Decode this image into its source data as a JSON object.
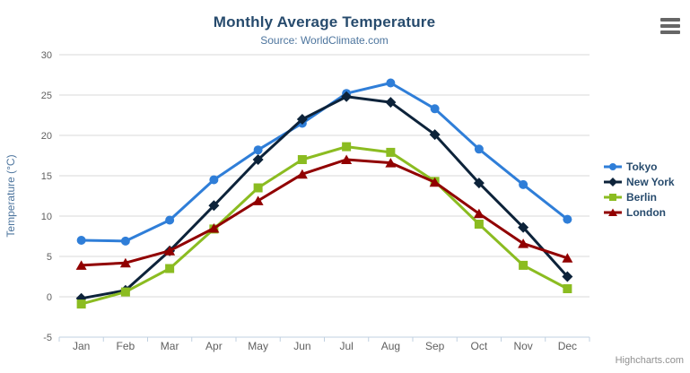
{
  "chart": {
    "title": "Monthly Average Temperature",
    "subtitle": "Source: WorldClimate.com",
    "credits": "Highcharts.com"
  },
  "chart_data": {
    "type": "line",
    "title": "Monthly Average Temperature",
    "subtitle": "Source: WorldClimate.com",
    "categories": [
      "Jan",
      "Feb",
      "Mar",
      "Apr",
      "May",
      "Jun",
      "Jul",
      "Aug",
      "Sep",
      "Oct",
      "Nov",
      "Dec"
    ],
    "xlabel": "",
    "ylabel": "Temperature (°C)",
    "ylim": [
      -5,
      30
    ],
    "ytick_step": 5,
    "grid": true,
    "legend_position": "right",
    "series": [
      {
        "name": "Tokyo",
        "color": "#2f7ed8",
        "marker": "circle",
        "values": [
          7.0,
          6.9,
          9.5,
          14.5,
          18.2,
          21.5,
          25.2,
          26.5,
          23.3,
          18.3,
          13.9,
          9.6
        ]
      },
      {
        "name": "New York",
        "color": "#0d233a",
        "marker": "diamond",
        "values": [
          -0.2,
          0.8,
          5.7,
          11.3,
          17.0,
          22.0,
          24.8,
          24.1,
          20.1,
          14.1,
          8.6,
          2.5
        ]
      },
      {
        "name": "Berlin",
        "color": "#8bbc21",
        "marker": "square",
        "values": [
          -0.9,
          0.6,
          3.5,
          8.4,
          13.5,
          17.0,
          18.6,
          17.9,
          14.3,
          9.0,
          3.9,
          1.0
        ]
      },
      {
        "name": "London",
        "color": "#910000",
        "marker": "triangle",
        "values": [
          3.9,
          4.2,
          5.7,
          8.5,
          11.9,
          15.2,
          17.0,
          16.6,
          14.2,
          10.3,
          6.6,
          4.8
        ]
      }
    ]
  },
  "colors": {
    "background": "#ffffff",
    "title": "#274b6d",
    "subtitle": "#4d759e",
    "axis_title": "#4d759e",
    "axis_labels": "#606060",
    "gridline": "#d8d8d8",
    "axis_line": "#c0d0e0",
    "legend_text": "#274b6d",
    "credits": "#909090",
    "menu_icon": "#666666"
  }
}
